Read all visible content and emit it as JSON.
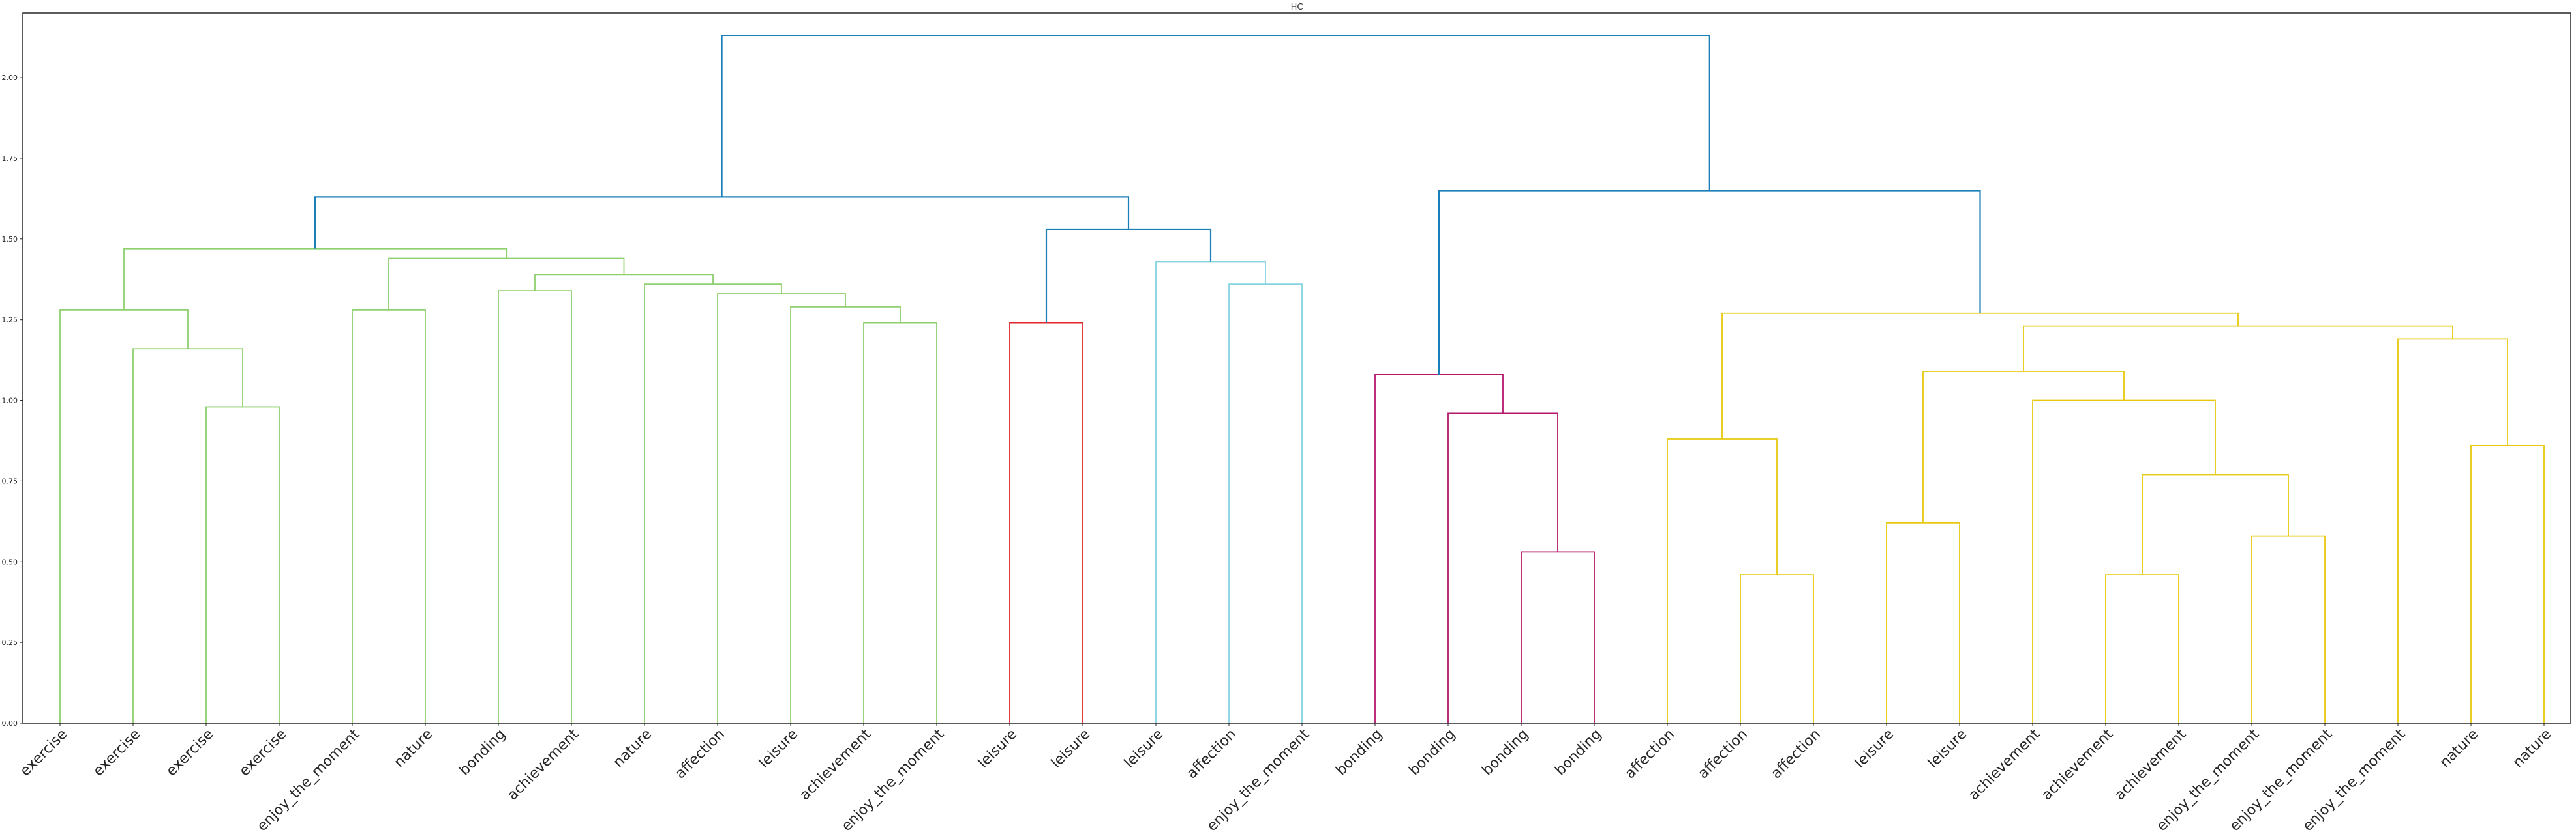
{
  "chart_data": {
    "type": "dendrogram",
    "title": "HC",
    "xlabel": "",
    "ylabel": "",
    "ylim": [
      0,
      2.2
    ],
    "yticks": [
      "0.00",
      "0.25",
      "0.50",
      "0.75",
      "1.00",
      "1.25",
      "1.50",
      "1.75",
      "2.00"
    ],
    "grid": false,
    "leaves": [
      "exercise",
      "exercise",
      "exercise",
      "exercise",
      "enjoy_the_moment",
      "nature",
      "bonding",
      "achievement",
      "nature",
      "affection",
      "leisure",
      "achievement",
      "enjoy_the_moment",
      "leisure",
      "leisure",
      "leisure",
      "affection",
      "enjoy_the_moment",
      "bonding",
      "bonding",
      "bonding",
      "bonding",
      "affection",
      "affection",
      "affection",
      "leisure",
      "leisure",
      "achievement",
      "achievement",
      "achievement",
      "enjoy_the_moment",
      "enjoy_the_moment",
      "enjoy_the_moment",
      "nature",
      "nature"
    ],
    "colors": {
      "green": "#8ecf6e",
      "red": "#e0262b",
      "cyan": "#86d3e0",
      "magenta": "#b5176b",
      "yellow": "#e6c90f",
      "blue": "#1a7fb8"
    },
    "merges": [
      {
        "left": 2,
        "right": 3,
        "height": 0.98,
        "color": "green"
      },
      {
        "left": 1,
        "right": 35,
        "height": 1.16,
        "color": "green"
      },
      {
        "left": 0,
        "right": 36,
        "height": 1.28,
        "color": "green"
      },
      {
        "left": 4,
        "right": 5,
        "height": 1.28,
        "color": "green"
      },
      {
        "left": 6,
        "right": 7,
        "height": 1.34,
        "color": "green"
      },
      {
        "left": 11,
        "right": 12,
        "height": 1.24,
        "color": "green"
      },
      {
        "left": 10,
        "right": 40,
        "height": 1.29,
        "color": "green"
      },
      {
        "left": 9,
        "right": 41,
        "height": 1.33,
        "color": "green"
      },
      {
        "left": 8,
        "right": 42,
        "height": 1.36,
        "color": "green"
      },
      {
        "left": 39,
        "right": 43,
        "height": 1.39,
        "color": "green"
      },
      {
        "left": 38,
        "right": 44,
        "height": 1.44,
        "color": "green"
      },
      {
        "left": 37,
        "right": 45,
        "height": 1.47,
        "color": "green"
      },
      {
        "left": 13,
        "right": 14,
        "height": 1.24,
        "color": "red"
      },
      {
        "left": 16,
        "right": 17,
        "height": 1.36,
        "color": "cyan"
      },
      {
        "left": 15,
        "right": 48,
        "height": 1.43,
        "color": "cyan"
      },
      {
        "left": 47,
        "right": 49,
        "height": 1.53,
        "color": "blue"
      },
      {
        "left": 46,
        "right": 50,
        "height": 1.63,
        "color": "blue"
      },
      {
        "left": 20,
        "right": 21,
        "height": 0.53,
        "color": "magenta"
      },
      {
        "left": 19,
        "right": 52,
        "height": 0.96,
        "color": "magenta"
      },
      {
        "left": 18,
        "right": 53,
        "height": 1.08,
        "color": "magenta"
      },
      {
        "left": 23,
        "right": 24,
        "height": 0.46,
        "color": "yellow"
      },
      {
        "left": 22,
        "right": 55,
        "height": 0.88,
        "color": "yellow"
      },
      {
        "left": 25,
        "right": 26,
        "height": 0.62,
        "color": "yellow"
      },
      {
        "left": 28,
        "right": 29,
        "height": 0.46,
        "color": "yellow"
      },
      {
        "left": 30,
        "right": 31,
        "height": 0.58,
        "color": "yellow"
      },
      {
        "left": 58,
        "right": 59,
        "height": 0.77,
        "color": "yellow"
      },
      {
        "left": 27,
        "right": 60,
        "height": 1.0,
        "color": "yellow"
      },
      {
        "left": 57,
        "right": 61,
        "height": 1.09,
        "color": "yellow"
      },
      {
        "left": 33,
        "right": 34,
        "height": 0.86,
        "color": "yellow"
      },
      {
        "left": 32,
        "right": 63,
        "height": 1.19,
        "color": "yellow"
      },
      {
        "left": 62,
        "right": 64,
        "height": 1.23,
        "color": "yellow"
      },
      {
        "left": 56,
        "right": 65,
        "height": 1.27,
        "color": "yellow"
      },
      {
        "left": 54,
        "right": 66,
        "height": 1.65,
        "color": "blue"
      },
      {
        "left": 51,
        "right": 67,
        "height": 2.13,
        "color": "blue"
      }
    ]
  }
}
